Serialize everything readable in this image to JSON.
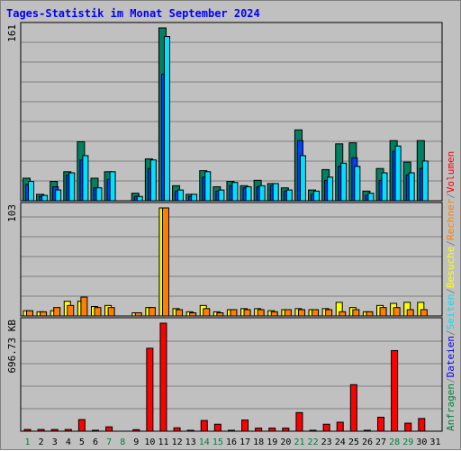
{
  "title": "Tages-Statistik im Monat September 2024",
  "axis_labels": {
    "top": "161",
    "middle": "103",
    "bottom": "696.73 KB"
  },
  "legend_right": [
    {
      "text": "Anfragen",
      "color": "#008040"
    },
    {
      "text": "/",
      "color": "#808080"
    },
    {
      "text": "Dateien",
      "color": "#0000ff"
    },
    {
      "text": "/",
      "color": "#808080"
    },
    {
      "text": "Seiten",
      "color": "#00e0ff"
    },
    {
      "text": "/",
      "color": "#808080"
    },
    {
      "text": "Besuche",
      "color": "#ffff00"
    },
    {
      "text": "/",
      "color": "#808080"
    },
    {
      "text": "Rechner",
      "color": "#ff8000"
    },
    {
      "text": "/",
      "color": "#808080"
    },
    {
      "text": "Volumen",
      "color": "#ff0000"
    }
  ],
  "colors": {
    "hits": "#008060",
    "files": "#0040ff",
    "pages": "#00e0ff",
    "visits": "#ffff00",
    "sites": "#ff8000",
    "kbytes": "#ff0000",
    "weekday_label": "#000000",
    "weekend_label": "#008040"
  },
  "chart_data": {
    "type": "bar",
    "days": [
      "1",
      "2",
      "3",
      "4",
      "5",
      "6",
      "7",
      "8",
      "9",
      "10",
      "11",
      "12",
      "13",
      "14",
      "15",
      "16",
      "17",
      "18",
      "19",
      "20",
      "21",
      "22",
      "23",
      "24",
      "25",
      "26",
      "27",
      "28",
      "29",
      "30",
      "31"
    ],
    "weekend": [
      1,
      7,
      8,
      14,
      15,
      21,
      22,
      28,
      29
    ],
    "series": [
      {
        "name": "Anfragen",
        "ylim": [
          0,
          161
        ],
        "values": [
          21,
          6,
          18,
          27,
          55,
          21,
          27,
          0,
          7,
          39,
          161,
          14,
          6,
          28,
          13,
          18,
          14,
          19,
          16,
          12,
          66,
          10,
          29,
          53,
          54,
          9,
          30,
          56,
          36,
          56,
          0
        ]
      },
      {
        "name": "Dateien",
        "ylim": [
          0,
          161
        ],
        "values": [
          15,
          4,
          13,
          24,
          38,
          12,
          20,
          0,
          4,
          30,
          118,
          9,
          4,
          22,
          9,
          14,
          12,
          13,
          14,
          9,
          56,
          6,
          19,
          32,
          40,
          5,
          19,
          46,
          24,
          30,
          0
        ]
      },
      {
        "name": "Seiten",
        "ylim": [
          0,
          161
        ],
        "values": [
          18,
          5,
          10,
          26,
          42,
          12,
          27,
          0,
          4,
          38,
          153,
          10,
          6,
          27,
          10,
          17,
          13,
          14,
          16,
          10,
          42,
          9,
          22,
          35,
          32,
          7,
          26,
          51,
          26,
          37,
          0
        ]
      },
      {
        "name": "Besuche",
        "ylim": [
          0,
          103
        ],
        "values": [
          5,
          4,
          5,
          14,
          14,
          9,
          10,
          0,
          3,
          8,
          103,
          7,
          4,
          10,
          4,
          6,
          7,
          7,
          5,
          6,
          7,
          6,
          7,
          13,
          8,
          4,
          10,
          12,
          13,
          13,
          0
        ]
      },
      {
        "name": "Rechner",
        "ylim": [
          0,
          103
        ],
        "values": [
          5,
          4,
          8,
          10,
          18,
          8,
          8,
          0,
          3,
          8,
          103,
          6,
          3,
          7,
          3,
          6,
          6,
          6,
          4,
          6,
          6,
          6,
          6,
          4,
          6,
          4,
          8,
          8,
          6,
          6,
          0
        ]
      },
      {
        "name": "Volumen",
        "ylim": [
          0,
          696.73
        ],
        "unit": "KB",
        "values": [
          11,
          11,
          11,
          11,
          75,
          6,
          28,
          0,
          10,
          535,
          696.73,
          22,
          6,
          69,
          45,
          6,
          72,
          20,
          20,
          20,
          120,
          6,
          45,
          58,
          300,
          6,
          90,
          520,
          52,
          82,
          0
        ]
      }
    ]
  }
}
